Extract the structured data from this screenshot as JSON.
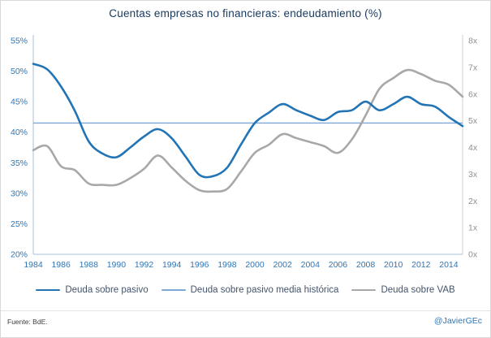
{
  "footer": {
    "source": "Fuente: BdE.",
    "handle": "@JavierGEc"
  },
  "chart_data": {
    "type": "line",
    "title": "Cuentas empresas no financieras: endeudamiento (%)",
    "grid": false,
    "legend_position": "bottom",
    "x": [
      1984,
      1985,
      1986,
      1987,
      1988,
      1989,
      1990,
      1991,
      1992,
      1993,
      1994,
      1995,
      1996,
      1997,
      1998,
      1999,
      2000,
      2001,
      2002,
      2003,
      2004,
      2005,
      2006,
      2007,
      2008,
      2009,
      2010,
      2011,
      2012,
      2013,
      2014,
      2015
    ],
    "x_tick_labels": [
      "1984",
      "1986",
      "1988",
      "1990",
      "1992",
      "1994",
      "1996",
      "1998",
      "2000",
      "2002",
      "2004",
      "2006",
      "2008",
      "2010",
      "2012",
      "2014"
    ],
    "left_axis": {
      "min": 20,
      "max": 55,
      "ticks": [
        20,
        25,
        30,
        35,
        40,
        45,
        50,
        55
      ],
      "suffix": "%",
      "color": "#2e75b6"
    },
    "right_axis": {
      "min": 0,
      "max": 8,
      "ticks": [
        0,
        1,
        2,
        3,
        4,
        5,
        6,
        7,
        8
      ],
      "suffix": "x",
      "color": "#8f8f8f"
    },
    "axis_line_color": "#a9c0d9",
    "series": [
      {
        "name": "Deuda sobre pasivo",
        "axis": "left",
        "color": "#2374b5",
        "width": 2.6,
        "values": [
          51.2,
          50.3,
          47.5,
          43.5,
          38.5,
          36.5,
          35.9,
          37.5,
          39.3,
          40.5,
          39.0,
          36.0,
          33.0,
          32.8,
          34.2,
          38.0,
          41.5,
          43.2,
          44.6,
          43.6,
          42.7,
          42.0,
          43.3,
          43.6,
          45.0,
          43.6,
          44.6,
          45.8,
          44.6,
          44.2,
          42.5,
          41.0
        ]
      },
      {
        "name": "Deuda sobre pasivo media histórica",
        "axis": "left",
        "color": "#7da7d8",
        "width": 1.4,
        "constant": 41.5
      },
      {
        "name": "Deuda sobre VAB",
        "axis": "right",
        "color": "#a8a8a8",
        "width": 2.6,
        "values": [
          3.9,
          4.05,
          3.3,
          3.15,
          2.65,
          2.6,
          2.6,
          2.85,
          3.2,
          3.7,
          3.25,
          2.75,
          2.4,
          2.35,
          2.45,
          3.1,
          3.8,
          4.1,
          4.5,
          4.35,
          4.2,
          4.05,
          3.8,
          4.3,
          5.2,
          6.2,
          6.6,
          6.9,
          6.75,
          6.5,
          6.35,
          5.9
        ]
      }
    ]
  }
}
